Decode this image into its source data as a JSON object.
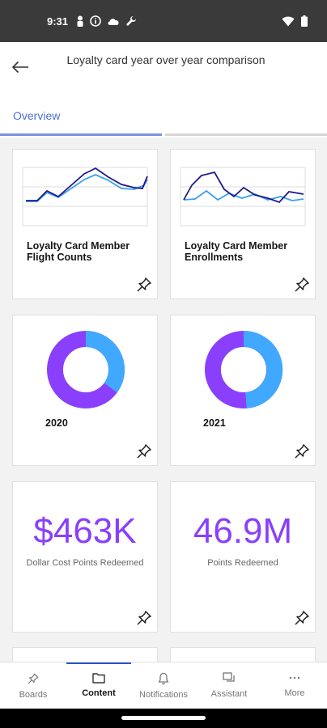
{
  "status_bar": {
    "time": "9:31",
    "left_icons": [
      "person-icon",
      "info-icon",
      "cloud-icon",
      "wrench-icon"
    ],
    "right_icons": [
      "wifi-icon",
      "battery-icon"
    ]
  },
  "header": {
    "title": "Loyalty card year over year comparison"
  },
  "tabs": [
    {
      "label": "Overview",
      "active": true
    }
  ],
  "cards": {
    "flight_counts": {
      "title": "Loyalty Card Member Flight Counts",
      "colors": {
        "series_a": "#1f1a8c",
        "series_b": "#3aa0f0"
      }
    },
    "enrollments": {
      "title": "Loyalty Card Member Enrollments",
      "colors": {
        "series_a": "#1f1a8c",
        "series_b": "#3aa0f0"
      }
    },
    "donut_2020": {
      "label": "2020",
      "colors": {
        "primary": "#8a3ffc",
        "secondary": "#40a9ff"
      }
    },
    "donut_2021": {
      "label": "2021",
      "colors": {
        "primary": "#8a3ffc",
        "secondary": "#40a9ff"
      }
    },
    "kpi_dollar": {
      "value": "$463K",
      "label": "Dollar Cost Points Redeemed"
    },
    "kpi_points": {
      "value": "46.9M",
      "label": "Points Redeemed"
    }
  },
  "bottom_nav": {
    "items": [
      {
        "label": "Boards",
        "icon": "pin-icon"
      },
      {
        "label": "Content",
        "icon": "folder-icon",
        "active": true
      },
      {
        "label": "Notifications",
        "icon": "bell-icon"
      },
      {
        "label": "Assistant",
        "icon": "chat-icon"
      },
      {
        "label": "More",
        "icon": "more-icon"
      }
    ]
  },
  "accent_color": "#8a3ffc"
}
